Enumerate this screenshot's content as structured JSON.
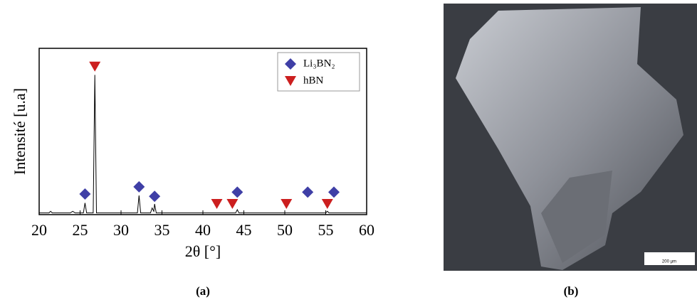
{
  "chart_data": {
    "type": "line",
    "xlabel": "2θ [°]",
    "ylabel": "Intensité [u.a]",
    "xlim": [
      20,
      60
    ],
    "ylim": [
      0,
      100
    ],
    "xticks": [
      20,
      25,
      30,
      35,
      40,
      45,
      50,
      55,
      60
    ],
    "grid": false,
    "legend": "upper right",
    "color": "#000000",
    "x": [
      20,
      21.2,
      21.4,
      21.6,
      23.8,
      24.1,
      24.4,
      25.4,
      25.6,
      25.8,
      26.6,
      26.8,
      27.0,
      32.0,
      32.2,
      32.4,
      33.6,
      33.8,
      34.0,
      34.1,
      34.3,
      44.0,
      44.2,
      44.4,
      55.0,
      55.2,
      55.4,
      60
    ],
    "values": [
      1,
      1,
      2,
      1,
      1,
      2,
      1,
      1,
      7,
      1,
      1,
      84,
      1,
      1,
      11.5,
      1,
      1,
      4,
      2,
      6.4,
      1,
      1,
      3,
      1,
      1,
      2,
      1,
      1
    ],
    "markers": [
      {
        "name": "Li₃BN₂",
        "color": "#3f3fa6",
        "marker": "diamond",
        "x": [
          25.6,
          32.2,
          34.1,
          44.2,
          52.8,
          56.0
        ],
        "values": [
          12.4,
          16.7,
          11,
          13.5,
          13.5,
          13.5
        ]
      },
      {
        "name": "hBN",
        "color": "#cc1f1f",
        "marker": "triangle-down",
        "x": [
          26.8,
          41.7,
          43.6,
          50.2,
          55.2
        ],
        "values": [
          89,
          6.4,
          6.4,
          6.4,
          6.4
        ]
      }
    ]
  },
  "captions": [
    "(a)",
    "(b)"
  ],
  "micrograph": {
    "scale_bar": "200 µm"
  }
}
